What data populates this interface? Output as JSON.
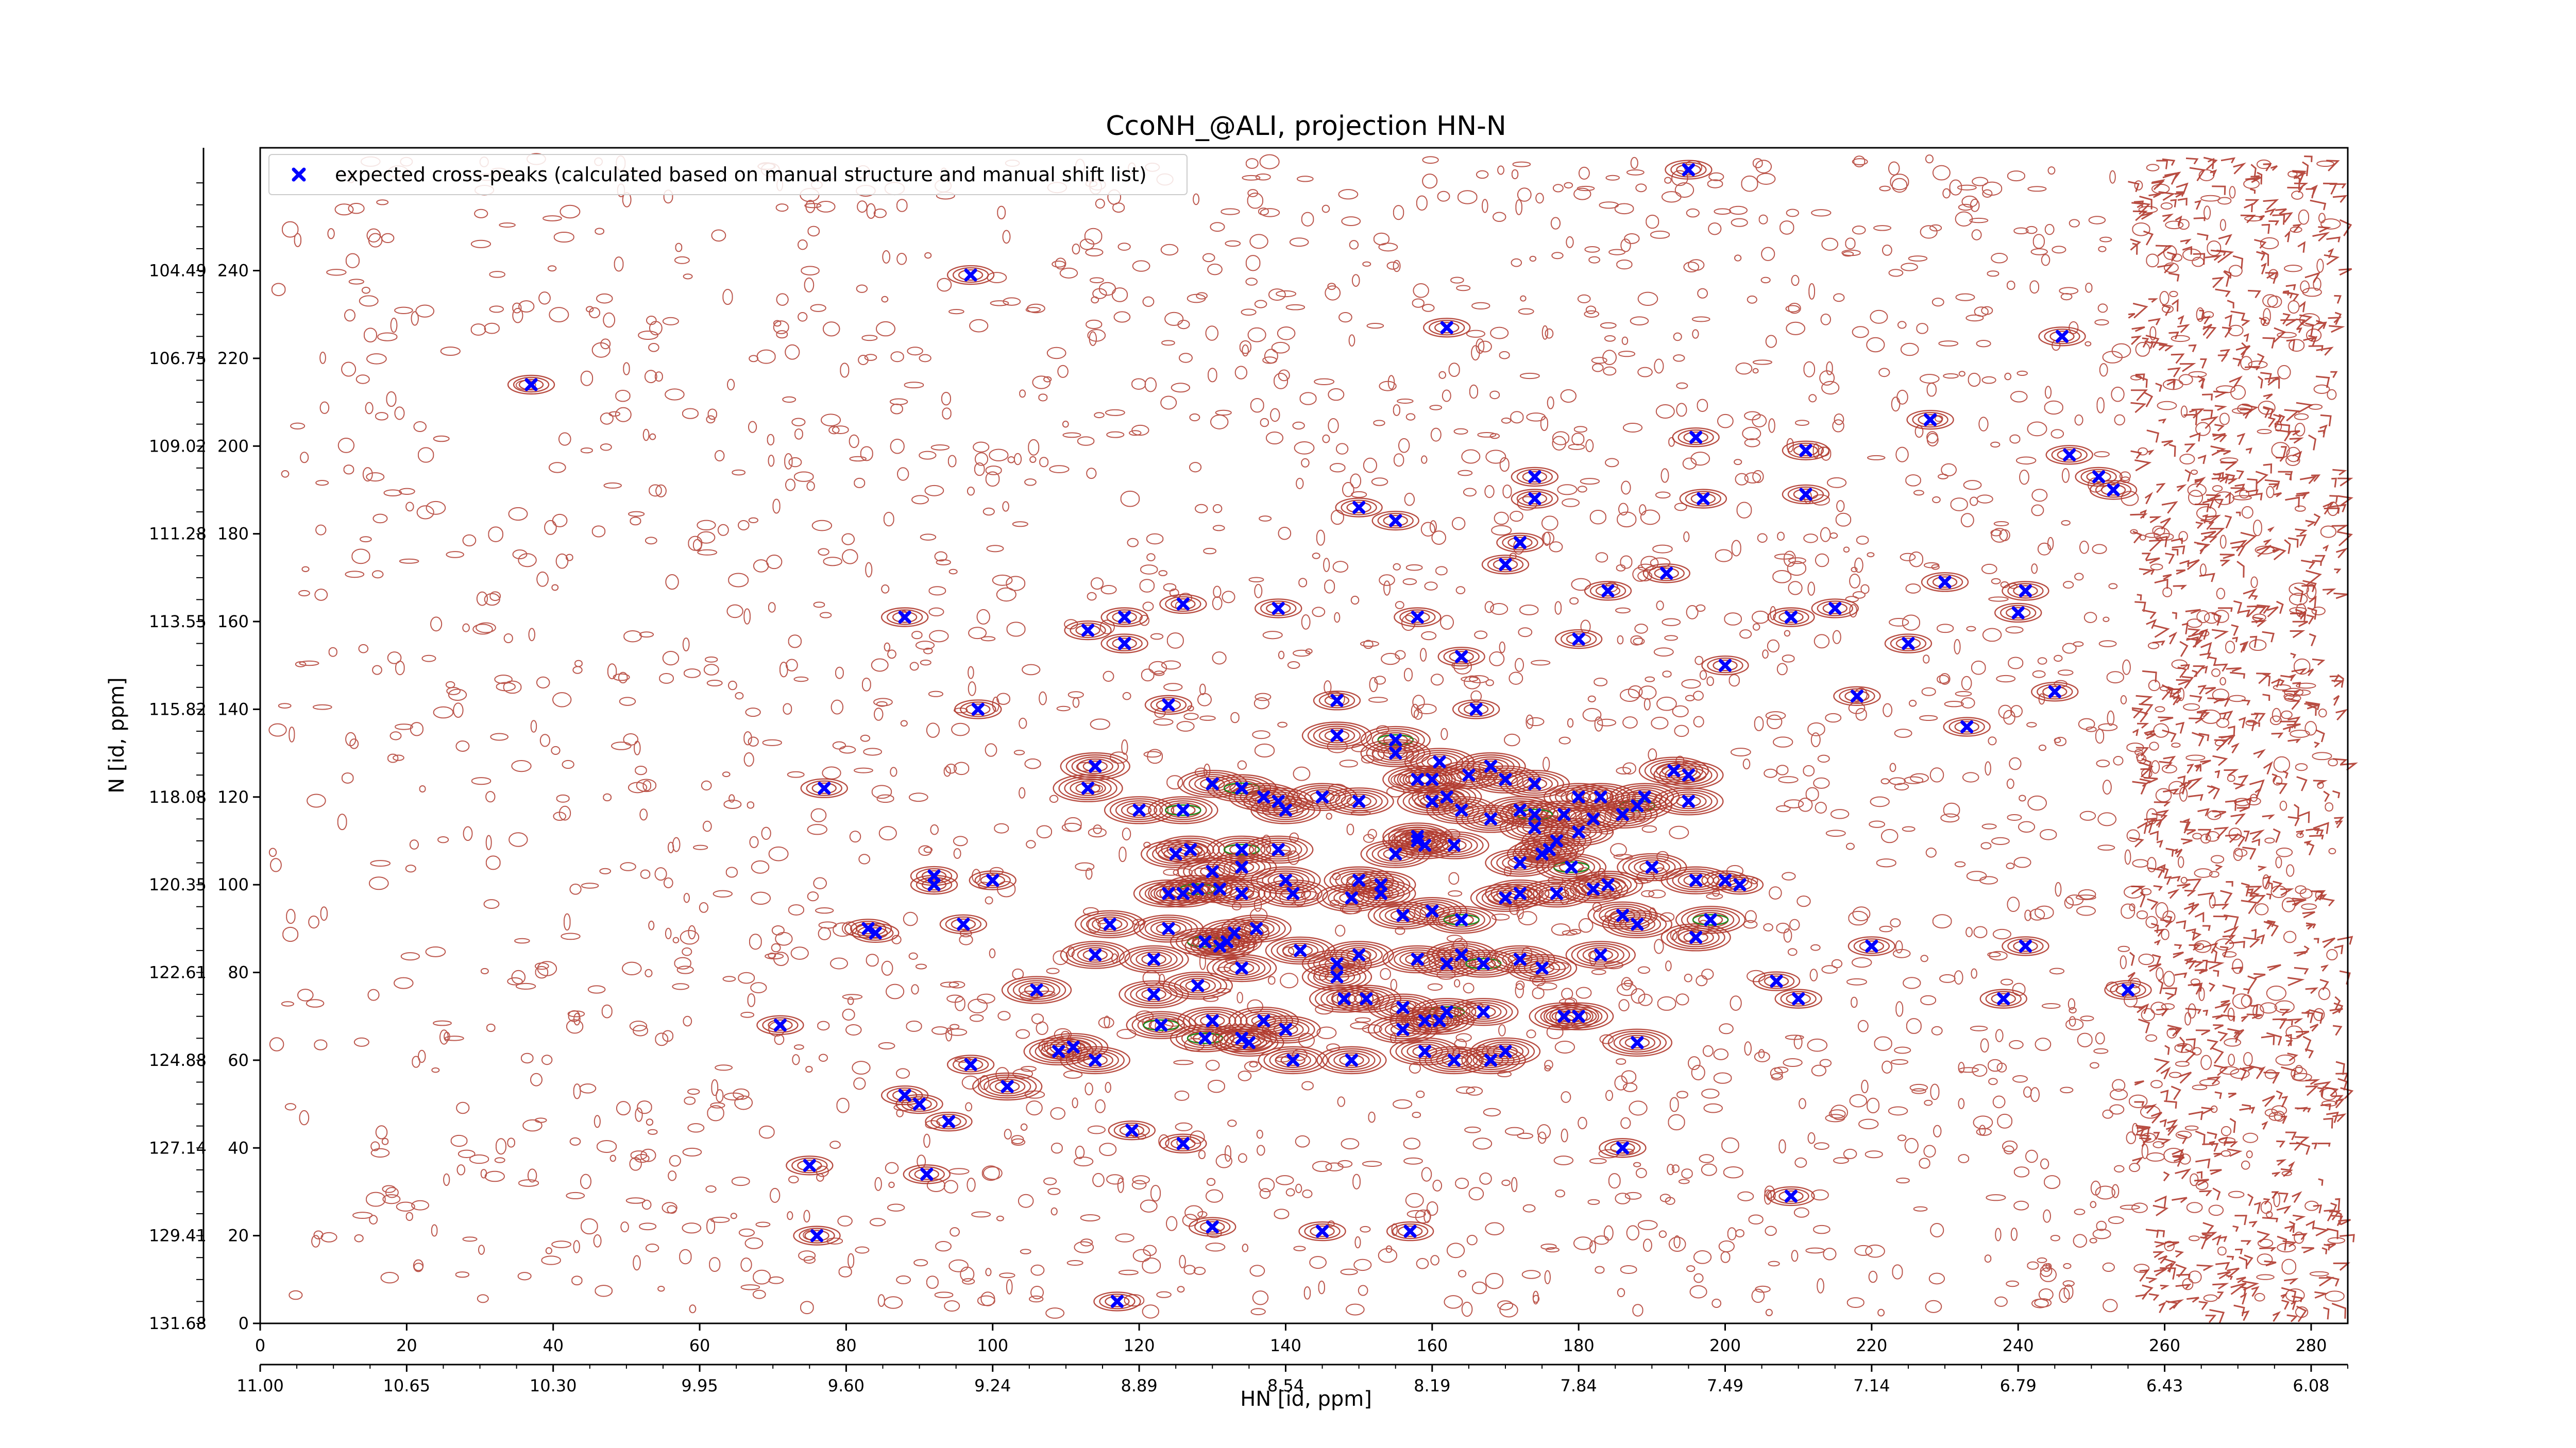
{
  "chart_data": {
    "type": "scatter",
    "title": "CcoNH_@ALI, projection HN-N",
    "xlabel": "HN [id, ppm]",
    "ylabel": "N [id, ppm]",
    "xlim": [
      0,
      285
    ],
    "ylim": [
      0,
      268
    ],
    "x_index_ticks": [
      "0",
      "20",
      "40",
      "60",
      "80",
      "100",
      "120",
      "140",
      "160",
      "180",
      "200",
      "220",
      "240",
      "260",
      "280"
    ],
    "x_ppm_ticks": [
      "11.00",
      "10.65",
      "10.30",
      "9.95",
      "9.60",
      "9.24",
      "8.89",
      "8.54",
      "8.19",
      "7.84",
      "7.49",
      "7.14",
      "6.79",
      "6.43",
      "6.08"
    ],
    "y_index_ticks": [
      "0",
      "20",
      "40",
      "60",
      "80",
      "100",
      "120",
      "140",
      "160",
      "180",
      "200",
      "220",
      "240"
    ],
    "y_ppm_ticks": [
      "131.68",
      "129.41",
      "127.14",
      "124.88",
      "122.61",
      "120.35",
      "118.08",
      "115.82",
      "113.55",
      "111.28",
      "109.02",
      "106.75",
      "104.49"
    ],
    "legend_position": "top-left",
    "grid": false,
    "colors": {
      "marker": "#0000ff",
      "contour": "#b03a2e",
      "contour_secondary": "#1a8a1a",
      "noise_edge": "#2aa198"
    },
    "series": [
      {
        "name": "expected cross-peaks (calculated based on manual structure and manual shift list)",
        "marker": "X",
        "color": "#0000ff",
        "points": [
          [
            37,
            214
          ],
          [
            97,
            239
          ],
          [
            88,
            161
          ],
          [
            195,
            263
          ],
          [
            162,
            227
          ],
          [
            246,
            225
          ],
          [
            228,
            206
          ],
          [
            247,
            198
          ],
          [
            251,
            193
          ],
          [
            253,
            190
          ],
          [
            197,
            188
          ],
          [
            196,
            202
          ],
          [
            211,
            199
          ],
          [
            211,
            189
          ],
          [
            174,
            193
          ],
          [
            174,
            188
          ],
          [
            150,
            186
          ],
          [
            155,
            183
          ],
          [
            172,
            178
          ],
          [
            170,
            173
          ],
          [
            192,
            171
          ],
          [
            184,
            167
          ],
          [
            230,
            169
          ],
          [
            241,
            167
          ],
          [
            240,
            162
          ],
          [
            215,
            163
          ],
          [
            126,
            164
          ],
          [
            139,
            163
          ],
          [
            158,
            161
          ],
          [
            118,
            161
          ],
          [
            113,
            158
          ],
          [
            180,
            156
          ],
          [
            118,
            155
          ],
          [
            209,
            161
          ],
          [
            225,
            155
          ],
          [
            164,
            152
          ],
          [
            200,
            150
          ],
          [
            98,
            140
          ],
          [
            124,
            141
          ],
          [
            147,
            142
          ],
          [
            166,
            140
          ],
          [
            233,
            136
          ],
          [
            245,
            144
          ],
          [
            218,
            143
          ],
          [
            147,
            134
          ],
          [
            155,
            133
          ],
          [
            155,
            130
          ],
          [
            114,
            127
          ],
          [
            168,
            127
          ],
          [
            193,
            126
          ],
          [
            195,
            125
          ],
          [
            77,
            122
          ],
          [
            113,
            122
          ],
          [
            130,
            123
          ],
          [
            134,
            122
          ],
          [
            137,
            120
          ],
          [
            139,
            119
          ],
          [
            145,
            120
          ],
          [
            160,
            119
          ],
          [
            164,
            117
          ],
          [
            172,
            117
          ],
          [
            180,
            120
          ],
          [
            183,
            120
          ],
          [
            188,
            118
          ],
          [
            186,
            116
          ],
          [
            178,
            116
          ],
          [
            158,
            124
          ],
          [
            160,
            124
          ],
          [
            161,
            128
          ],
          [
            165,
            125
          ],
          [
            170,
            124
          ],
          [
            120,
            117
          ],
          [
            126,
            117
          ],
          [
            140,
            117
          ],
          [
            150,
            119
          ],
          [
            162,
            120
          ],
          [
            174,
            123
          ],
          [
            189,
            120
          ],
          [
            195,
            119
          ],
          [
            182,
            115
          ],
          [
            168,
            115
          ],
          [
            174,
            116
          ],
          [
            174,
            113
          ],
          [
            158,
            110
          ],
          [
            158,
            111
          ],
          [
            159,
            109
          ],
          [
            163,
            109
          ],
          [
            177,
            110
          ],
          [
            180,
            112
          ],
          [
            176,
            108
          ],
          [
            179,
            104
          ],
          [
            172,
            105
          ],
          [
            175,
            107
          ],
          [
            190,
            104
          ],
          [
            200,
            101
          ],
          [
            202,
            100
          ],
          [
            196,
            101
          ],
          [
            125,
            107
          ],
          [
            127,
            108
          ],
          [
            134,
            108
          ],
          [
            139,
            108
          ],
          [
            150,
            101
          ],
          [
            155,
            107
          ],
          [
            130,
            103
          ],
          [
            134,
            104
          ],
          [
            140,
            101
          ],
          [
            124,
            98
          ],
          [
            126,
            98
          ],
          [
            128,
            99
          ],
          [
            131,
            99
          ],
          [
            134,
            98
          ],
          [
            141,
            98
          ],
          [
            149,
            97
          ],
          [
            153,
            100
          ],
          [
            153,
            98
          ],
          [
            156,
            93
          ],
          [
            160,
            94
          ],
          [
            164,
            92
          ],
          [
            170,
            97
          ],
          [
            172,
            98
          ],
          [
            177,
            98
          ],
          [
            182,
            99
          ],
          [
            184,
            100
          ],
          [
            186,
            93
          ],
          [
            188,
            91
          ],
          [
            196,
            88
          ],
          [
            198,
            92
          ],
          [
            92,
            102
          ],
          [
            92,
            100
          ],
          [
            100,
            101
          ],
          [
            83,
            90
          ],
          [
            84,
            89
          ],
          [
            96,
            91
          ],
          [
            116,
            91
          ],
          [
            124,
            90
          ],
          [
            129,
            87
          ],
          [
            133,
            89
          ],
          [
            136,
            90
          ],
          [
            132,
            87
          ],
          [
            131,
            86
          ],
          [
            142,
            85
          ],
          [
            150,
            84
          ],
          [
            183,
            84
          ],
          [
            220,
            86
          ],
          [
            241,
            86
          ],
          [
            114,
            84
          ],
          [
            122,
            83
          ],
          [
            134,
            81
          ],
          [
            147,
            79
          ],
          [
            147,
            82
          ],
          [
            158,
            83
          ],
          [
            162,
            82
          ],
          [
            164,
            84
          ],
          [
            167,
            82
          ],
          [
            172,
            83
          ],
          [
            175,
            81
          ],
          [
            106,
            76
          ],
          [
            122,
            75
          ],
          [
            128,
            77
          ],
          [
            148,
            74
          ],
          [
            151,
            74
          ],
          [
            156,
            72
          ],
          [
            162,
            71
          ],
          [
            167,
            71
          ],
          [
            178,
            70
          ],
          [
            180,
            70
          ],
          [
            207,
            78
          ],
          [
            210,
            74
          ],
          [
            238,
            74
          ],
          [
            255,
            76
          ],
          [
            71,
            68
          ],
          [
            123,
            68
          ],
          [
            130,
            69
          ],
          [
            137,
            69
          ],
          [
            140,
            67
          ],
          [
            156,
            67
          ],
          [
            159,
            69
          ],
          [
            161,
            69
          ],
          [
            109,
            62
          ],
          [
            111,
            63
          ],
          [
            129,
            65
          ],
          [
            134,
            65
          ],
          [
            135,
            64
          ],
          [
            141,
            60
          ],
          [
            149,
            60
          ],
          [
            159,
            62
          ],
          [
            163,
            60
          ],
          [
            168,
            60
          ],
          [
            188,
            64
          ],
          [
            97,
            59
          ],
          [
            102,
            54
          ],
          [
            114,
            60
          ],
          [
            170,
            62
          ],
          [
            94,
            46
          ],
          [
            90,
            50
          ],
          [
            88,
            52
          ],
          [
            119,
            44
          ],
          [
            126,
            41
          ],
          [
            186,
            40
          ],
          [
            75,
            36
          ],
          [
            91,
            34
          ],
          [
            130,
            22
          ],
          [
            145,
            21
          ],
          [
            157,
            21
          ],
          [
            209,
            29
          ],
          [
            76,
            20
          ],
          [
            117,
            5
          ]
        ]
      }
    ]
  }
}
